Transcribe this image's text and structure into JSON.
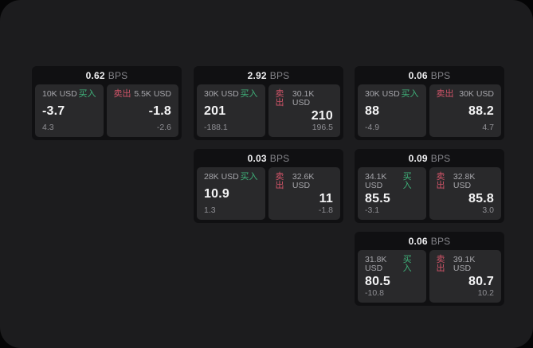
{
  "labels": {
    "bps": "BPS",
    "buy": "买入",
    "sell": "卖出"
  },
  "colors": {
    "buy": "#3fb27a",
    "sell": "#d05468",
    "card_bg": "#101012",
    "panel_bg": "#29292b",
    "window_bg": "#1c1c1e"
  },
  "cards": [
    {
      "bps": "0.62",
      "col": 0,
      "row": 0,
      "buy": {
        "size": "10K USD",
        "value": "-3.7",
        "delta": "4.3"
      },
      "sell": {
        "size": "5.5K USD",
        "value": "-1.8",
        "delta": "-2.6"
      }
    },
    {
      "bps": "2.92",
      "col": 1,
      "row": 0,
      "buy": {
        "size": "30K USD",
        "value": "201",
        "delta": "-188.1"
      },
      "sell": {
        "size": "30.1K USD",
        "value": "210",
        "delta": "196.5"
      }
    },
    {
      "bps": "0.06",
      "col": 2,
      "row": 0,
      "buy": {
        "size": "30K USD",
        "value": "88",
        "delta": "-4.9"
      },
      "sell": {
        "size": "30K USD",
        "value": "88.2",
        "delta": "4.7"
      }
    },
    {
      "bps": "0.03",
      "col": 1,
      "row": 1,
      "buy": {
        "size": "28K USD",
        "value": "10.9",
        "delta": "1.3"
      },
      "sell": {
        "size": "32.6K USD",
        "value": "11",
        "delta": "-1.8"
      }
    },
    {
      "bps": "0.09",
      "col": 2,
      "row": 1,
      "buy": {
        "size": "34.1K USD",
        "value": "85.5",
        "delta": "-3.1"
      },
      "sell": {
        "size": "32.8K USD",
        "value": "85.8",
        "delta": "3.0"
      }
    },
    {
      "bps": "0.06",
      "col": 2,
      "row": 2,
      "buy": {
        "size": "31.8K USD",
        "value": "80.5",
        "delta": "-10.8"
      },
      "sell": {
        "size": "39.1K USD",
        "value": "80.7",
        "delta": "10.2"
      }
    }
  ]
}
